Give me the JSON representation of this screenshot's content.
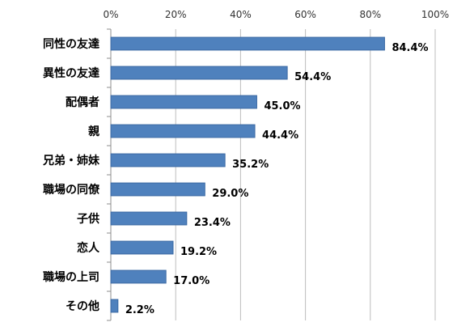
{
  "chart_data": {
    "type": "bar",
    "orientation": "horizontal",
    "categories": [
      "同性の友達",
      "異性の友達",
      "配偶者",
      "親",
      "兄弟・姉妹",
      "職場の同僚",
      "子供",
      "恋人",
      "職場の上司",
      "その他"
    ],
    "values": [
      84.4,
      54.4,
      45.0,
      44.4,
      35.2,
      29.0,
      23.4,
      19.2,
      17.0,
      2.2
    ],
    "value_labels": [
      "84.4%",
      "54.4%",
      "45.0%",
      "44.4%",
      "35.2%",
      "29.0%",
      "23.4%",
      "19.2%",
      "17.0%",
      "2.2%"
    ],
    "xlim": [
      0,
      100
    ],
    "x_ticks": [
      0,
      20,
      40,
      60,
      80,
      100
    ],
    "x_tick_labels": [
      "0%",
      "20%",
      "40%",
      "60%",
      "80%",
      "100%"
    ],
    "x_axis_position": "top",
    "grid": true,
    "legend": "none",
    "bar_color": "#4f81bd"
  }
}
